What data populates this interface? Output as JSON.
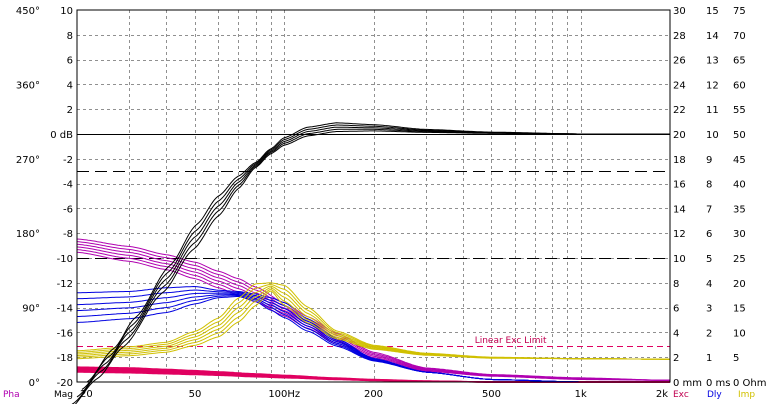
{
  "chart_data": {
    "type": "line",
    "title": "",
    "xlabel": "",
    "ylabel": "",
    "x_scale": "log",
    "xlim": [
      20,
      2000
    ],
    "x_tick_labels": [
      {
        "value": 20,
        "label": "20"
      },
      {
        "value": 50,
        "label": "50"
      },
      {
        "value": 100,
        "label": "100Hz"
      },
      {
        "value": 200,
        "label": "200"
      },
      {
        "value": 500,
        "label": "500"
      },
      {
        "value": 1000,
        "label": "1k"
      },
      {
        "value": 2000,
        "label": "2k"
      }
    ],
    "x_minor_ticks": [
      30,
      40,
      60,
      70,
      80,
      90,
      300,
      400,
      600,
      700,
      800,
      900
    ],
    "grid": true,
    "axes": {
      "magnitude": {
        "unit": "dB",
        "range": [
          -20,
          10
        ],
        "tick_labels": [
          "10",
          "8",
          "6",
          "4",
          "2",
          "0 dB",
          "-2",
          "-4",
          "-6",
          "-8",
          "-10",
          "-12",
          "-14",
          "-16",
          "-18",
          "-20"
        ]
      },
      "phase": {
        "range": [
          0,
          450
        ],
        "tick_labels": [
          "450°",
          "360°",
          "270°",
          "180°",
          "90°",
          "0°"
        ]
      },
      "excursion": {
        "unit": "mm",
        "range": [
          0,
          30
        ],
        "tick_labels": [
          "30",
          "28",
          "26",
          "24",
          "22",
          "20",
          "18",
          "16",
          "14",
          "12",
          "10",
          "8",
          "6",
          "4",
          "2",
          "0 mm"
        ]
      },
      "delay": {
        "unit": "ms",
        "range": [
          0,
          15
        ],
        "tick_labels": [
          "15",
          "14",
          "13",
          "12",
          "11",
          "10",
          "9",
          "8",
          "7",
          "6",
          "5",
          "4",
          "3",
          "2",
          "1",
          "0 ms"
        ]
      },
      "impedance": {
        "unit": "Ohm",
        "range": [
          0,
          75
        ],
        "tick_labels": [
          "75",
          "70",
          "65",
          "60",
          "55",
          "50",
          "45",
          "40",
          "35",
          "30",
          "25",
          "20",
          "15",
          "10",
          "5",
          "0 Ohm"
        ]
      }
    },
    "bottom_labels": {
      "phase": "Pha",
      "magnitude": "Mag",
      "excursion": "Exc",
      "delay": "Dly",
      "impedance": "Imp"
    },
    "annotations": [
      {
        "text": "Linear Exc Limit",
        "x": 580,
        "excursion_mm": 2.9
      }
    ],
    "reference_lines": [
      {
        "axis": "magnitude",
        "value": 0,
        "style": "solid",
        "color": "#000000"
      },
      {
        "axis": "magnitude",
        "value": -3,
        "style": "long-dash",
        "color": "#000000"
      },
      {
        "axis": "magnitude",
        "value": -10,
        "style": "long-dash",
        "color": "#000000"
      },
      {
        "axis": "excursion",
        "value": 2.9,
        "style": "dash",
        "color": "#e00060"
      }
    ],
    "series": [
      {
        "family": "magnitude",
        "axis": "magnitude",
        "color": "#000000",
        "count": 5,
        "x": [
          20,
          25,
          30,
          40,
          50,
          60,
          70,
          80,
          90,
          100,
          120,
          150,
          200,
          300,
          500,
          1000,
          2000
        ],
        "y": [
          -21.2,
          -18.5,
          -16.0,
          -11.7,
          -8.3,
          -5.8,
          -3.9,
          -2.5,
          -1.4,
          -0.6,
          0.2,
          0.55,
          0.5,
          0.25,
          0.1,
          0.0,
          0.0
        ],
        "spread": [
          1.2,
          1.2,
          1.2,
          1.1,
          1.0,
          0.8,
          0.5,
          0.2,
          0.2,
          0.3,
          0.35,
          0.35,
          0.25,
          0.12,
          0.05,
          0.0,
          0.0
        ]
      },
      {
        "family": "phase",
        "axis": "phase",
        "color": "#b000b0",
        "count": 6,
        "x": [
          20,
          30,
          40,
          50,
          60,
          70,
          80,
          100,
          120,
          150,
          200,
          300,
          500,
          1000,
          2000
        ],
        "y": [
          165,
          155,
          145,
          135,
          124,
          115,
          106,
          88,
          72,
          53,
          32,
          15,
          8,
          4,
          2
        ],
        "spread": [
          8,
          9,
          9,
          10,
          10,
          10,
          9,
          8,
          7,
          6,
          4,
          2,
          1,
          1,
          0
        ]
      },
      {
        "family": "excursion",
        "axis": "excursion",
        "color": "#0000e0",
        "count": 6,
        "x": [
          20,
          30,
          40,
          50,
          60,
          70,
          80,
          90,
          100,
          120,
          150,
          200,
          300,
          500,
          1000
        ],
        "y": [
          6.0,
          6.2,
          6.6,
          7.0,
          7.1,
          7.1,
          6.8,
          6.3,
          5.8,
          4.6,
          3.2,
          1.8,
          0.8,
          0.2,
          0.0
        ],
        "spread": [
          1.2,
          1.1,
          1.0,
          0.7,
          0.3,
          0.2,
          0.3,
          0.5,
          0.6,
          0.5,
          0.3,
          0.1,
          0.0,
          0.0,
          0.0
        ]
      },
      {
        "family": "impedance",
        "axis": "impedance",
        "color": "#d0c000",
        "count": 6,
        "x": [
          20,
          30,
          40,
          50,
          60,
          70,
          80,
          90,
          100,
          120,
          150,
          200,
          300,
          500,
          1000,
          2000
        ],
        "y": [
          5.5,
          6.2,
          7.0,
          8.8,
          11.0,
          14.5,
          17.6,
          19.2,
          17.5,
          13.5,
          9.5,
          7.0,
          5.6,
          4.9,
          4.7,
          4.6
        ],
        "spread": [
          0.8,
          0.9,
          1.0,
          1.4,
          1.9,
          2.4,
          2.2,
          0.8,
          2.0,
          1.6,
          0.8,
          0.4,
          0.2,
          0.1,
          0.0,
          0.0
        ]
      },
      {
        "family": "delay",
        "axis": "delay",
        "color": "#e00060",
        "count": 6,
        "x": [
          20,
          30,
          40,
          50,
          60,
          80,
          100,
          150,
          200,
          300,
          500
        ],
        "y": [
          0.5,
          0.47,
          0.42,
          0.38,
          0.34,
          0.27,
          0.22,
          0.13,
          0.08,
          0.03,
          0.0
        ],
        "spread": [
          0.1,
          0.1,
          0.09,
          0.08,
          0.07,
          0.06,
          0.05,
          0.03,
          0.02,
          0.01,
          0.0
        ]
      }
    ]
  }
}
